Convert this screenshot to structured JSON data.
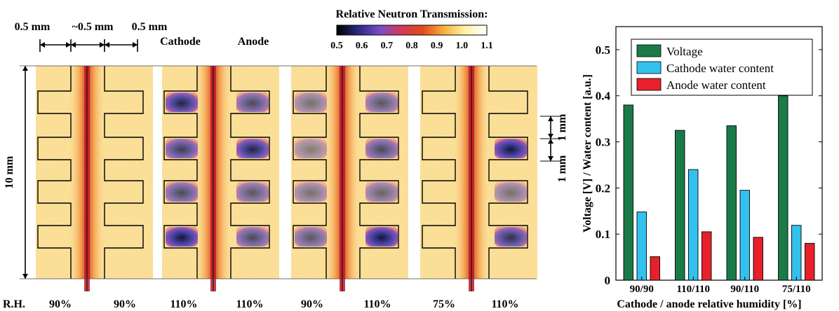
{
  "colorbar": {
    "title": "Relative Neutron Transmission:",
    "ticks": [
      "0.5",
      "0.6",
      "0.7",
      "0.8",
      "0.9",
      "1.0",
      "1.1"
    ],
    "colors": [
      "#000000",
      "#2a2a80",
      "#7a4cc8",
      "#d23a56",
      "#e24a1c",
      "#f6b23a",
      "#fff2a6",
      "#ffffff"
    ]
  },
  "dimensions": {
    "widths": [
      "0.5 mm",
      "~0.5 mm",
      "0.5 mm"
    ],
    "height": "10 mm",
    "pitch": [
      "1 mm",
      "1 mm"
    ]
  },
  "headers": {
    "cathode": "Cathode",
    "anode": "Anode"
  },
  "rh_prefix": "R.H.",
  "panels": [
    {
      "cathode_rh": "90%",
      "anode_rh": "90%"
    },
    {
      "cathode_rh": "110%",
      "anode_rh": "110%"
    },
    {
      "cathode_rh": "90%",
      "anode_rh": "110%"
    },
    {
      "cathode_rh": "75%",
      "anode_rh": "110%"
    }
  ],
  "chart_data": {
    "type": "bar",
    "categories": [
      "90/90",
      "110/110",
      "90/110",
      "75/110"
    ],
    "series": [
      {
        "name": "Voltage",
        "values": [
          0.38,
          0.325,
          0.335,
          0.4
        ],
        "color": "#1a7a48"
      },
      {
        "name": "Cathode water content",
        "values": [
          0.148,
          0.24,
          0.195,
          0.119
        ],
        "color": "#33c2ee"
      },
      {
        "name": "Anode water content",
        "values": [
          0.051,
          0.105,
          0.093,
          0.08
        ],
        "color": "#e8202a"
      }
    ],
    "xlabel": "Cathode / anode relative humidity [%]",
    "ylabel": "Voltage [V] / Water content [a.u.]",
    "ylim": [
      0,
      0.55
    ],
    "yticks": [
      0,
      0.1,
      0.2,
      0.3,
      0.4,
      0.5
    ],
    "ytick_labels": [
      "0",
      "0.1",
      "0.2",
      "0.3",
      "0.4",
      "0.5"
    ],
    "legend": "top-left"
  }
}
